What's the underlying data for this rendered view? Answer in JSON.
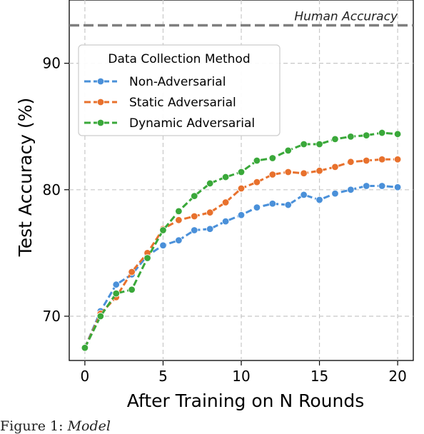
{
  "chart_data": {
    "type": "line",
    "xlabel": "After Training on N Rounds",
    "ylabel": "Test Accuracy (%)",
    "xlim": [
      -1,
      21
    ],
    "ylim": [
      66.5,
      95
    ],
    "xticks": [
      0,
      5,
      10,
      15,
      20
    ],
    "yticks": [
      70,
      80,
      90
    ],
    "grid": true,
    "legend": {
      "title": "Data Collection Method",
      "position": "upper-left"
    },
    "x": [
      0,
      1,
      2,
      3,
      4,
      5,
      6,
      7,
      8,
      9,
      10,
      11,
      12,
      13,
      14,
      15,
      16,
      17,
      18,
      19,
      20
    ],
    "series": [
      {
        "name": "Non-Adversarial",
        "color": "#4a90d9",
        "values": [
          67.5,
          70.4,
          72.5,
          73.3,
          74.8,
          75.6,
          76.0,
          76.8,
          76.9,
          77.5,
          78.0,
          78.6,
          78.9,
          78.8,
          79.6,
          79.2,
          79.7,
          80.0,
          80.3,
          80.3,
          80.2
        ]
      },
      {
        "name": "Static Adversarial",
        "color": "#e8712d",
        "values": [
          67.5,
          70.2,
          71.5,
          73.5,
          75.0,
          76.9,
          77.6,
          77.9,
          78.2,
          79.0,
          80.1,
          80.6,
          81.2,
          81.4,
          81.3,
          81.5,
          81.8,
          82.2,
          82.3,
          82.4,
          82.4
        ]
      },
      {
        "name": "Dynamic Adversarial",
        "color": "#3aa83a",
        "values": [
          67.5,
          70.0,
          71.8,
          72.1,
          74.6,
          76.8,
          78.3,
          79.5,
          80.5,
          81.0,
          81.4,
          82.3,
          82.5,
          83.1,
          83.6,
          83.6,
          84.0,
          84.2,
          84.3,
          84.5,
          84.4
        ]
      }
    ],
    "reference_line": {
      "label": "Human Accuracy",
      "y": 93.0,
      "color": "#7f7f7f"
    }
  },
  "caption": {
    "prefix": "Figure 1:",
    "text": "Model"
  }
}
